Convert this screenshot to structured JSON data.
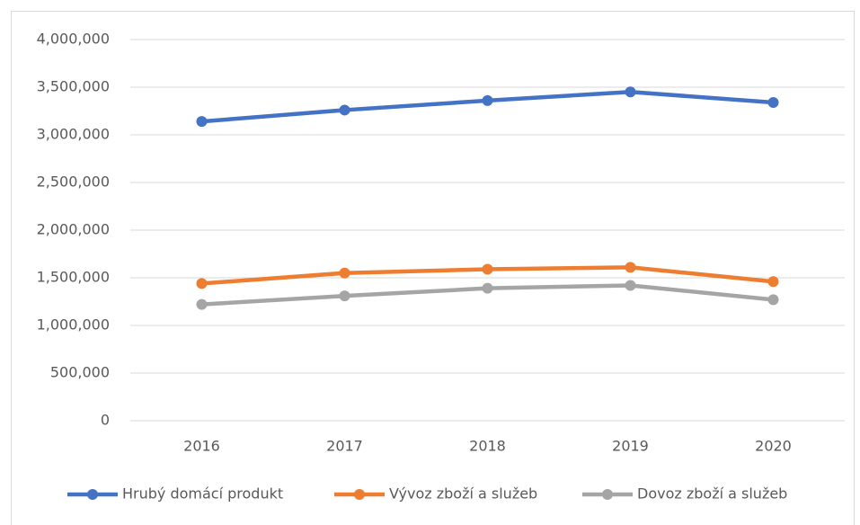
{
  "chart_data": {
    "type": "line",
    "categories": [
      "2016",
      "2017",
      "2018",
      "2019",
      "2020"
    ],
    "series": [
      {
        "name": "Hrubý domácí produkt",
        "color": "#4472c4",
        "values": [
          3140000,
          3260000,
          3360000,
          3450000,
          3340000
        ]
      },
      {
        "name": "Vývoz zboží a služeb",
        "color": "#ed7d31",
        "values": [
          1440000,
          1550000,
          1590000,
          1610000,
          1460000
        ]
      },
      {
        "name": "Dovoz zboží a služeb",
        "color": "#a5a5a5",
        "values": [
          1220000,
          1310000,
          1390000,
          1420000,
          1270000
        ]
      }
    ],
    "ylim": [
      0,
      4000000
    ],
    "yticks": [
      0,
      {
        "value": 500000,
        "label": "500,000"
      },
      {
        "value": 1000000,
        "label": "1,000,000"
      },
      {
        "value": 1500000,
        "label": "1,500,000"
      },
      {
        "value": 2000000,
        "label": "2,000,000"
      },
      {
        "value": 2500000,
        "label": "2,500,000"
      },
      {
        "value": 3000000,
        "label": "3,000,000"
      },
      {
        "value": 3500000,
        "label": "3,500,000"
      },
      {
        "value": 4000000,
        "label": "4,000,000"
      }
    ],
    "grid": true,
    "legend": "bottom"
  }
}
